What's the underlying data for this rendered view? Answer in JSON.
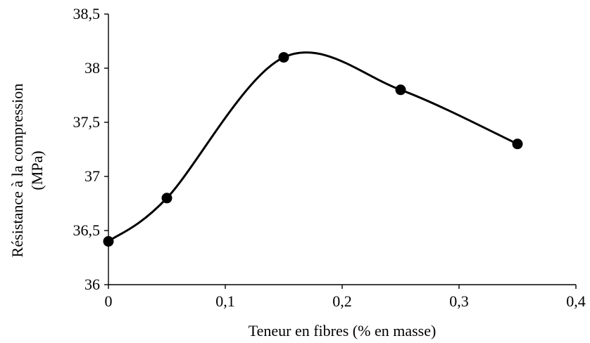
{
  "chart_data": {
    "type": "line",
    "smooth": true,
    "x": [
      0,
      0.05,
      0.15,
      0.25,
      0.35
    ],
    "series": [
      {
        "values": [
          36.4,
          36.8,
          38.1,
          37.8,
          37.3
        ],
        "color": "#000000",
        "marker": "circle"
      }
    ],
    "xlabel": "Teneur en fibres (% en masse)",
    "ylabel_lines": [
      "Résistance à la compression",
      "(MPa)"
    ],
    "xlim": [
      0,
      0.4
    ],
    "ylim": [
      36,
      38.5
    ],
    "x_ticks": [
      0,
      0.1,
      0.2,
      0.3,
      0.4
    ],
    "x_tick_labels": [
      "0",
      "0,1",
      "0,2",
      "0,3",
      "0,4"
    ],
    "y_ticks": [
      36,
      36.5,
      37,
      37.5,
      38,
      38.5
    ],
    "y_tick_labels": [
      "36",
      "36,5",
      "37",
      "37,5",
      "38",
      "38,5"
    ],
    "grid": false,
    "legend": "none"
  }
}
